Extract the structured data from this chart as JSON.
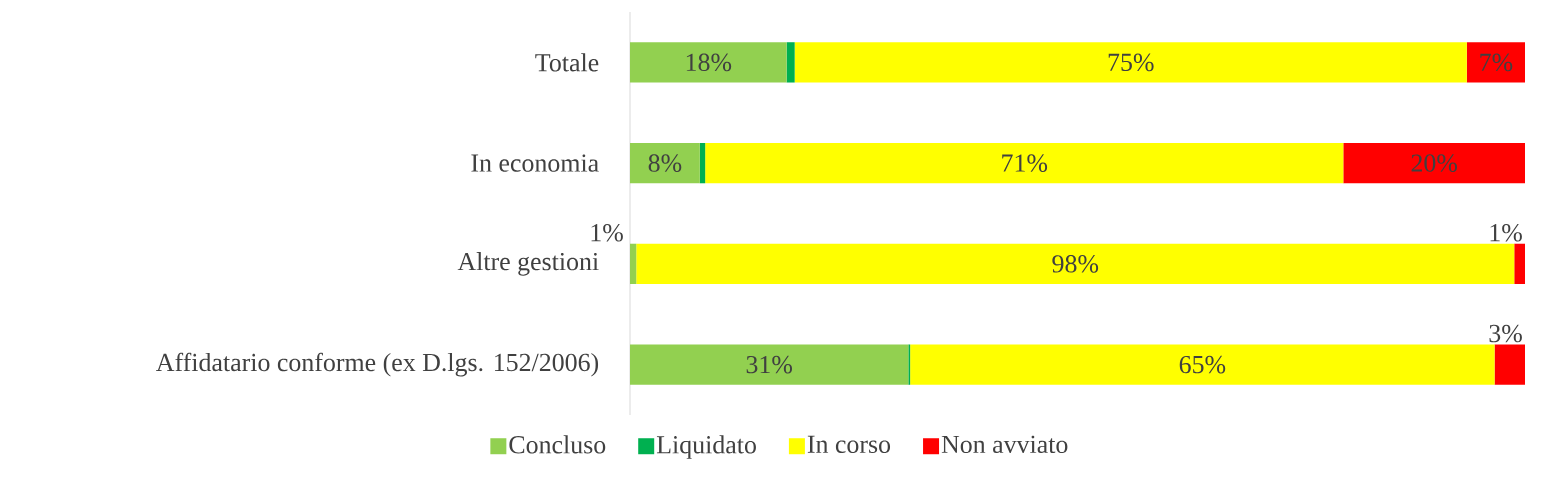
{
  "chart_data": {
    "type": "bar",
    "orientation": "horizontal",
    "stacked": true,
    "categories": [
      "Totale",
      "In economia",
      "Altre gestioni",
      "Affidatario conforme (ex D.lgs. 152/2006)"
    ],
    "xlim": [
      0,
      100
    ],
    "tick_labels": "y",
    "legend": "bottom",
    "series": [
      {
        "name": "Concluso",
        "color": "#92d050",
        "values": [
          17.5,
          7.8,
          0.7,
          31.1
        ],
        "value_labels": [
          "18%",
          "8%",
          "1%",
          "31%"
        ]
      },
      {
        "name": "Liquidato",
        "color": "#00b050",
        "values": [
          0.9,
          0.6,
          0,
          0.2
        ],
        "value_labels": [
          null,
          null,
          null,
          null
        ]
      },
      {
        "name": "In corso",
        "color": "#ffff00",
        "values": [
          75.1,
          71.3,
          98.1,
          65.3
        ],
        "value_labels": [
          "75%",
          "71%",
          "98%",
          "65%"
        ]
      },
      {
        "name": "Non avviato",
        "color": "#ff0000",
        "values": [
          6.5,
          20.3,
          1.2,
          3.4
        ],
        "value_labels": [
          "7%",
          "20%",
          "1%",
          "3%"
        ]
      }
    ]
  }
}
